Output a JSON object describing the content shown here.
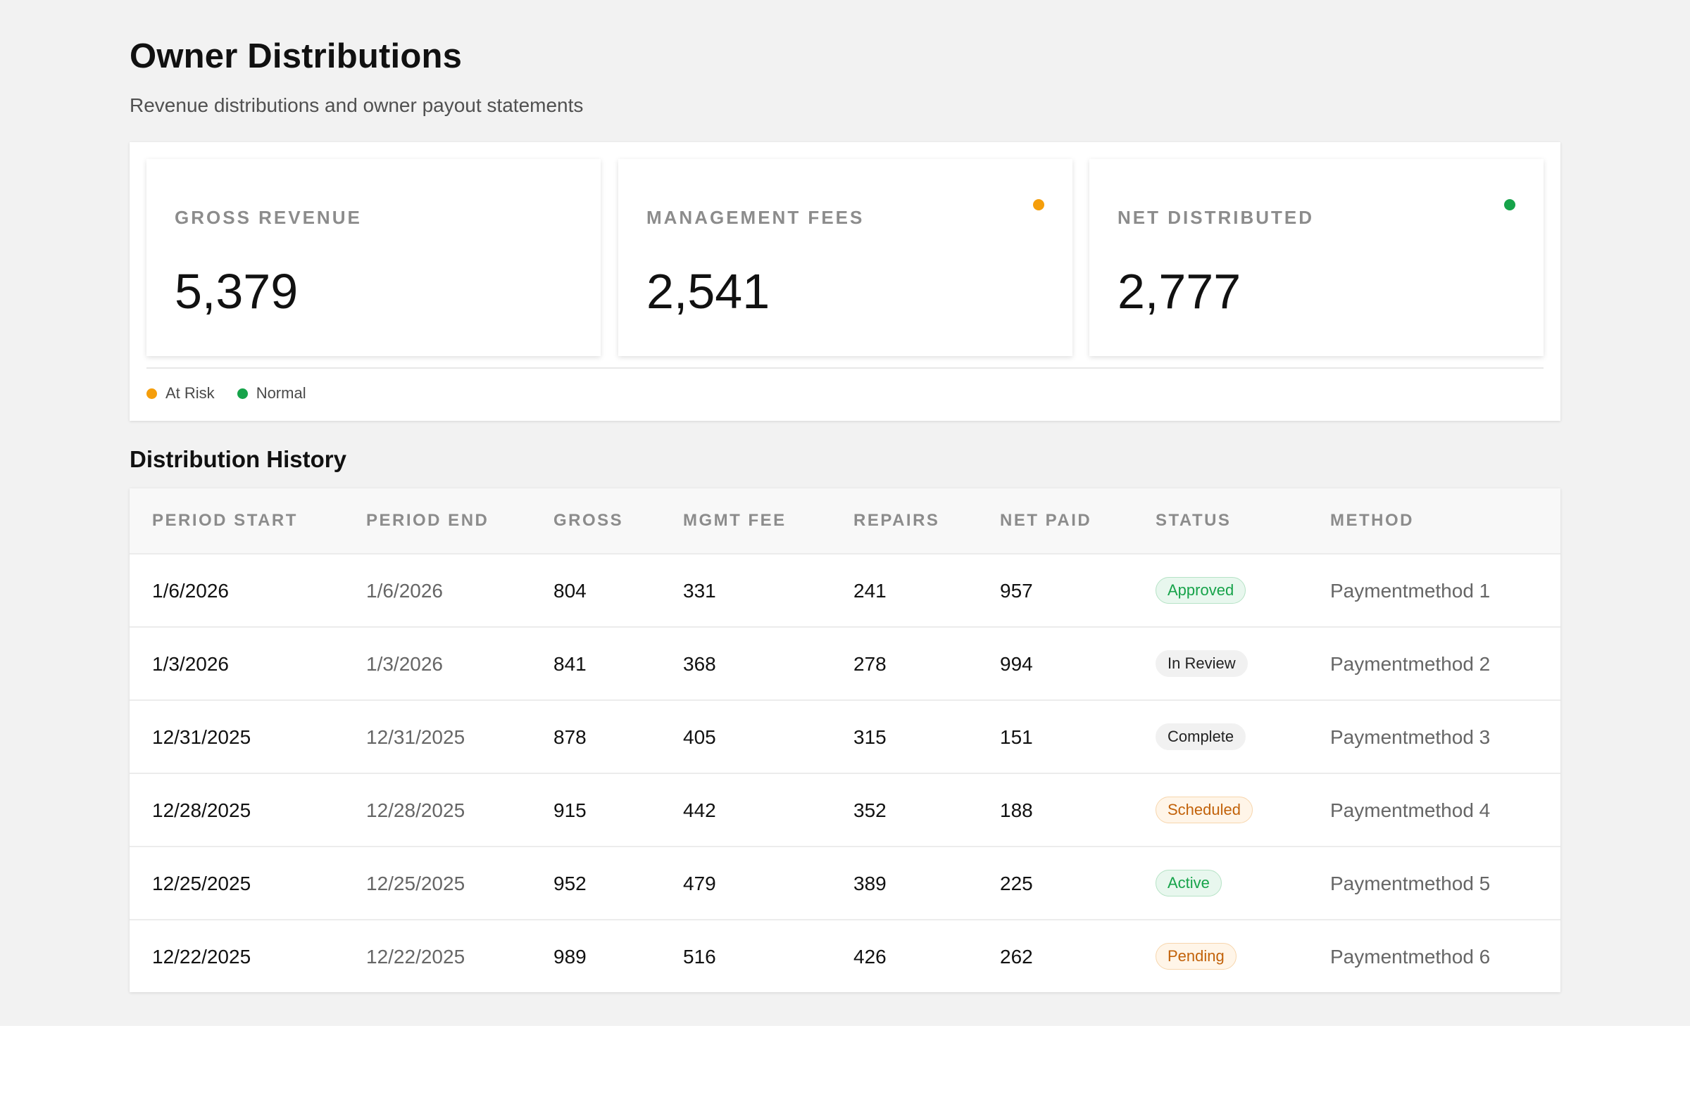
{
  "page": {
    "title": "Owner Distributions",
    "subtitle": "Revenue distributions and owner payout statements"
  },
  "kpis": [
    {
      "label": "GROSS REVENUE",
      "value": "5,379",
      "indicator": null
    },
    {
      "label": "MANAGEMENT FEES",
      "value": "2,541",
      "indicator": "at-risk"
    },
    {
      "label": "NET DISTRIBUTED",
      "value": "2,777",
      "indicator": "normal"
    }
  ],
  "legend": [
    {
      "key": "at-risk",
      "label": "At Risk",
      "color": "#f59e0b"
    },
    {
      "key": "normal",
      "label": "Normal",
      "color": "#16a34a"
    }
  ],
  "history": {
    "title": "Distribution History",
    "columns": [
      "PERIOD START",
      "PERIOD END",
      "GROSS",
      "MGMT FEE",
      "REPAIRS",
      "NET PAID",
      "STATUS",
      "METHOD"
    ],
    "rows": [
      {
        "period_start": "1/6/2026",
        "period_end": "1/6/2026",
        "gross": "804",
        "mgmt_fee": "331",
        "repairs": "241",
        "net_paid": "957",
        "status": "Approved",
        "method": "Paymentmethod 1"
      },
      {
        "period_start": "1/3/2026",
        "period_end": "1/3/2026",
        "gross": "841",
        "mgmt_fee": "368",
        "repairs": "278",
        "net_paid": "994",
        "status": "In Review",
        "method": "Paymentmethod 2"
      },
      {
        "period_start": "12/31/2025",
        "period_end": "12/31/2025",
        "gross": "878",
        "mgmt_fee": "405",
        "repairs": "315",
        "net_paid": "151",
        "status": "Complete",
        "method": "Paymentmethod 3"
      },
      {
        "period_start": "12/28/2025",
        "period_end": "12/28/2025",
        "gross": "915",
        "mgmt_fee": "442",
        "repairs": "352",
        "net_paid": "188",
        "status": "Scheduled",
        "method": "Paymentmethod 4"
      },
      {
        "period_start": "12/25/2025",
        "period_end": "12/25/2025",
        "gross": "952",
        "mgmt_fee": "479",
        "repairs": "389",
        "net_paid": "225",
        "status": "Active",
        "method": "Paymentmethod 5"
      },
      {
        "period_start": "12/22/2025",
        "period_end": "12/22/2025",
        "gross": "989",
        "mgmt_fee": "516",
        "repairs": "426",
        "net_paid": "262",
        "status": "Pending",
        "method": "Paymentmethod 6"
      }
    ]
  },
  "status_styles": {
    "Approved": {
      "bg": "#e8f7ee",
      "border": "#b6e3c6",
      "color": "#16a34a"
    },
    "Active": {
      "bg": "#e8f7ee",
      "border": "#b6e3c6",
      "color": "#16a34a"
    },
    "In Review": {
      "bg": "#f1f1f1",
      "border": "#f1f1f1",
      "color": "#222222"
    },
    "Complete": {
      "bg": "#f1f1f1",
      "border": "#f1f1f1",
      "color": "#222222"
    },
    "Scheduled": {
      "bg": "#fff5e8",
      "border": "#f7d6ad",
      "color": "#c2620a"
    },
    "Pending": {
      "bg": "#fff5e8",
      "border": "#f7d6ad",
      "color": "#c2620a"
    }
  }
}
